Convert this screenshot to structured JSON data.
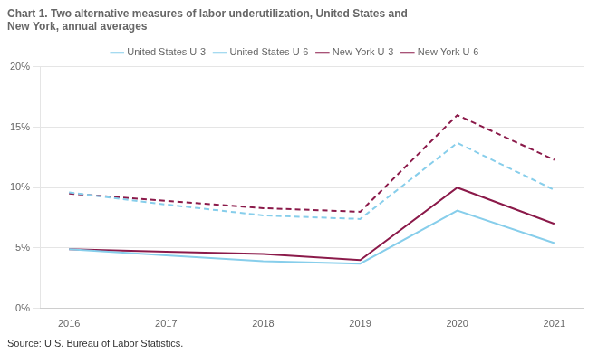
{
  "chart_data": {
    "type": "line",
    "title": "Chart 1. Two alternative measures of labor underutilization, United States and\nNew York, annual averages",
    "annotations": [
      "Source: U.S. Bureau of Labor Statistics."
    ],
    "x": [
      2016,
      2017,
      2018,
      2019,
      2020,
      2021
    ],
    "series": [
      {
        "name": "United States U-3",
        "color": "#87CEEB",
        "line_style": "solid",
        "values": [
          4.9,
          4.4,
          3.9,
          3.7,
          8.1,
          5.4
        ]
      },
      {
        "name": "United States U-6",
        "color": "#87CEEB",
        "line_style": "dashed",
        "values": [
          9.6,
          8.6,
          7.7,
          7.4,
          13.7,
          9.8
        ]
      },
      {
        "name": "New York U-3",
        "color": "#8B1A4A",
        "line_style": "solid",
        "values": [
          4.9,
          4.7,
          4.5,
          4.0,
          10.0,
          7.0
        ]
      },
      {
        "name": "New York U-6",
        "color": "#8B1A4A",
        "line_style": "dashed",
        "values": [
          9.5,
          8.9,
          8.3,
          8.0,
          16.0,
          12.3
        ]
      }
    ],
    "xlim": [
      2015.7,
      2021.3
    ],
    "xticks": [
      2016,
      2017,
      2018,
      2019,
      2020,
      2021
    ],
    "ylim": [
      0,
      20
    ],
    "yticks": [
      {
        "value": 0,
        "label": "0%"
      },
      {
        "value": 5,
        "label": "5%"
      },
      {
        "value": 10,
        "label": "10%"
      },
      {
        "value": 15,
        "label": "15%"
      },
      {
        "value": 20,
        "label": "20%"
      }
    ],
    "grid": "y",
    "legend": "top"
  }
}
